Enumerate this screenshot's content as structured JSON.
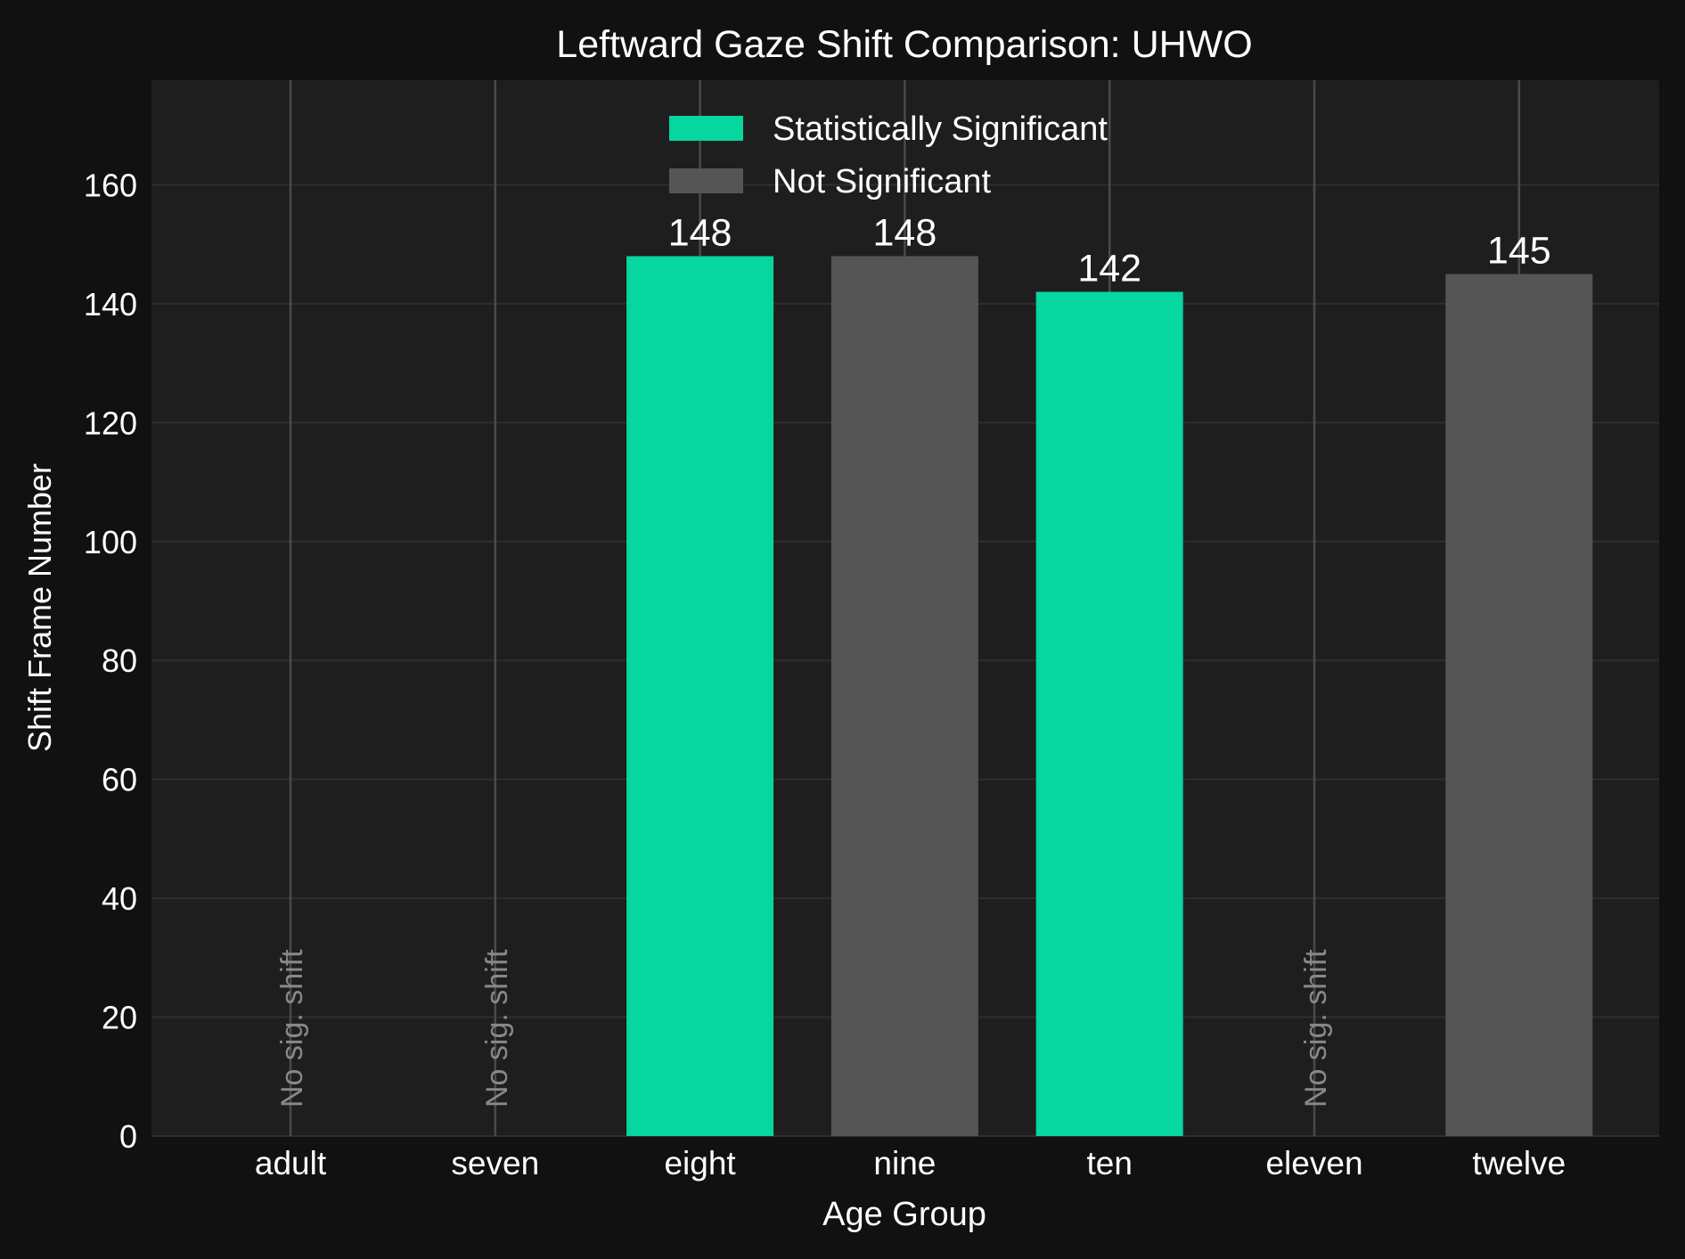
{
  "chart_data": {
    "type": "bar",
    "title": "Leftward Gaze Shift Comparison: UHWO",
    "xlabel": "Age Group",
    "ylabel": "Shift Frame Number",
    "categories": [
      "adult",
      "seven",
      "eight",
      "nine",
      "ten",
      "eleven",
      "twelve"
    ],
    "values": [
      null,
      null,
      148,
      148,
      142,
      null,
      145
    ],
    "significant": [
      null,
      null,
      true,
      false,
      true,
      null,
      false
    ],
    "value_labels": [
      "",
      "",
      "148",
      "148",
      "142",
      "",
      "145"
    ],
    "no_shift_label": "No sig. shift",
    "ylim": [
      0,
      177.6
    ],
    "yticks": [
      0,
      20,
      40,
      60,
      80,
      100,
      120,
      140,
      160
    ],
    "grid": true,
    "legend": {
      "placement": "top-center",
      "entries": [
        {
          "label": "Statistically Significant",
          "color": "#06d6a0"
        },
        {
          "label": "Not Significant",
          "color": "#555555"
        }
      ]
    },
    "colors": {
      "significant": "#06d6a0",
      "not_significant": "#555555",
      "figure_bg": "#111111",
      "plot_bg": "#1e1e1e",
      "grid": "#2e2e2e",
      "text": "#ffffff",
      "muted_text": "#888888",
      "category_line": "#4a4a4a"
    }
  }
}
